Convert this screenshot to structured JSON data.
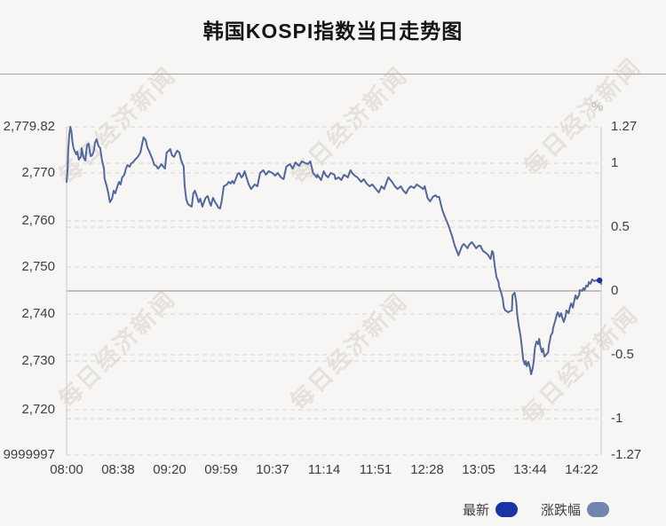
{
  "page": {
    "title": "韩国KOSPI指数当日走势图"
  },
  "watermark": {
    "text": "每日经济新闻"
  },
  "chart_data": {
    "type": "line",
    "title": "韩国KOSPI指数当日走势图",
    "unit_label": "%",
    "grid": "dashed horizontal gridlines for both axes; solid gray line at 0%",
    "legend_position": "bottom-right",
    "left_axis": {
      "labels": [
        "2,779.82",
        "2,770",
        "2,760",
        "2,750",
        "2,740",
        "2,730",
        "2,720",
        "9999997"
      ]
    },
    "right_axis": {
      "labels": [
        "1.27",
        "1",
        "0.5",
        "0",
        "-0.5",
        "-1",
        "-1.27"
      ],
      "ylim": [
        -1.27,
        1.27
      ]
    },
    "x_axis": {
      "labels": [
        "08:00",
        "08:38",
        "09:20",
        "09:59",
        "10:37",
        "11:14",
        "11:51",
        "12:28",
        "13:05",
        "13:44",
        "14:22"
      ]
    },
    "zero_line_pct": 0,
    "legend": [
      {
        "label": "最新",
        "color": "#1a34a6"
      },
      {
        "label": "涨跌幅",
        "color": "#7285ad"
      }
    ],
    "series": [
      {
        "name": "涨跌幅(%)",
        "color": "#52689b",
        "points": [
          [
            0.0,
            0.844
          ],
          [
            0.002,
            0.947
          ],
          [
            0.003,
            1.085
          ],
          [
            0.005,
            1.208
          ],
          [
            0.007,
            1.27
          ],
          [
            0.009,
            1.236
          ],
          [
            0.011,
            1.153
          ],
          [
            0.013,
            1.105
          ],
          [
            0.015,
            1.085
          ],
          [
            0.018,
            1.057
          ],
          [
            0.02,
            1.078
          ],
          [
            0.023,
            1.016
          ],
          [
            0.027,
            1.043
          ],
          [
            0.028,
            1.105
          ],
          [
            0.032,
            1.03
          ],
          [
            0.035,
            1.009
          ],
          [
            0.038,
            1.126
          ],
          [
            0.041,
            1.14
          ],
          [
            0.045,
            1.043
          ],
          [
            0.048,
            1.05
          ],
          [
            0.051,
            1.085
          ],
          [
            0.053,
            1.146
          ],
          [
            0.056,
            1.174
          ],
          [
            0.06,
            1.119
          ],
          [
            0.063,
            1.105
          ],
          [
            0.066,
            1.016
          ],
          [
            0.07,
            0.947
          ],
          [
            0.071,
            0.872
          ],
          [
            0.075,
            0.81
          ],
          [
            0.078,
            0.755
          ],
          [
            0.081,
            0.687
          ],
          [
            0.085,
            0.714
          ],
          [
            0.088,
            0.776
          ],
          [
            0.091,
            0.755
          ],
          [
            0.094,
            0.796
          ],
          [
            0.098,
            0.844
          ],
          [
            0.101,
            0.824
          ],
          [
            0.104,
            0.879
          ],
          [
            0.108,
            0.899
          ],
          [
            0.111,
            0.947
          ],
          [
            0.114,
            0.975
          ],
          [
            0.118,
            0.961
          ],
          [
            0.121,
            0.988
          ],
          [
            0.124,
            0.995
          ],
          [
            0.128,
            1.016
          ],
          [
            0.133,
            1.037
          ],
          [
            0.138,
            1.071
          ],
          [
            0.141,
            1.133
          ],
          [
            0.144,
            1.188
          ],
          [
            0.148,
            1.167
          ],
          [
            0.151,
            1.112
          ],
          [
            0.154,
            1.085
          ],
          [
            0.161,
            1.016
          ],
          [
            0.164,
            0.975
          ],
          [
            0.168,
            0.968
          ],
          [
            0.171,
            0.947
          ],
          [
            0.174,
            0.961
          ],
          [
            0.177,
            0.982
          ],
          [
            0.181,
            0.961
          ],
          [
            0.184,
            0.947
          ],
          [
            0.187,
            1.071
          ],
          [
            0.191,
            1.085
          ],
          [
            0.194,
            1.098
          ],
          [
            0.197,
            1.05
          ],
          [
            0.201,
            1.037
          ],
          [
            0.204,
            1.064
          ],
          [
            0.207,
            1.085
          ],
          [
            0.211,
            1.071
          ],
          [
            0.214,
            1.016
          ],
          [
            0.217,
            0.982
          ],
          [
            0.219,
            0.968
          ],
          [
            0.221,
            0.81
          ],
          [
            0.224,
            0.707
          ],
          [
            0.227,
            0.673
          ],
          [
            0.231,
            0.659
          ],
          [
            0.234,
            0.652
          ],
          [
            0.237,
            0.755
          ],
          [
            0.24,
            0.776
          ],
          [
            0.244,
            0.728
          ],
          [
            0.247,
            0.687
          ],
          [
            0.25,
            0.714
          ],
          [
            0.254,
            0.652
          ],
          [
            0.257,
            0.687
          ],
          [
            0.26,
            0.721
          ],
          [
            0.264,
            0.734
          ],
          [
            0.267,
            0.693
          ],
          [
            0.27,
            0.659
          ],
          [
            0.274,
            0.721
          ],
          [
            0.277,
            0.693
          ],
          [
            0.28,
            0.673
          ],
          [
            0.284,
            0.645
          ],
          [
            0.287,
            0.638
          ],
          [
            0.29,
            0.693
          ],
          [
            0.294,
            0.81
          ],
          [
            0.297,
            0.817
          ],
          [
            0.3,
            0.824
          ],
          [
            0.303,
            0.844
          ],
          [
            0.307,
            0.831
          ],
          [
            0.31,
            0.851
          ],
          [
            0.313,
            0.831
          ],
          [
            0.317,
            0.872
          ],
          [
            0.32,
            0.906
          ],
          [
            0.323,
            0.913
          ],
          [
            0.327,
            0.879
          ],
          [
            0.33,
            0.892
          ],
          [
            0.333,
            0.927
          ],
          [
            0.34,
            0.831
          ],
          [
            0.345,
            0.789
          ],
          [
            0.352,
            0.824
          ],
          [
            0.357,
            0.81
          ],
          [
            0.362,
            0.913
          ],
          [
            0.368,
            0.934
          ],
          [
            0.373,
            0.899
          ],
          [
            0.378,
            0.927
          ],
          [
            0.385,
            0.913
          ],
          [
            0.39,
            0.892
          ],
          [
            0.395,
            0.913
          ],
          [
            0.401,
            0.879
          ],
          [
            0.406,
            0.865
          ],
          [
            0.411,
            0.961
          ],
          [
            0.418,
            0.982
          ],
          [
            0.423,
            0.947
          ],
          [
            0.428,
            0.995
          ],
          [
            0.435,
            0.968
          ],
          [
            0.44,
            1.002
          ],
          [
            0.444,
            0.995
          ],
          [
            0.451,
            0.982
          ],
          [
            0.456,
            1.002
          ],
          [
            0.461,
            0.913
          ],
          [
            0.468,
            0.879
          ],
          [
            0.469,
            0.899
          ],
          [
            0.476,
            0.858
          ],
          [
            0.481,
            0.927
          ],
          [
            0.484,
            0.899
          ],
          [
            0.489,
            0.879
          ],
          [
            0.494,
            0.913
          ],
          [
            0.501,
            0.899
          ],
          [
            0.503,
            0.865
          ],
          [
            0.509,
            0.879
          ],
          [
            0.514,
            0.858
          ],
          [
            0.519,
            0.899
          ],
          [
            0.526,
            0.879
          ],
          [
            0.531,
            0.934
          ],
          [
            0.534,
            0.913
          ],
          [
            0.539,
            0.892
          ],
          [
            0.544,
            0.879
          ],
          [
            0.551,
            0.844
          ],
          [
            0.556,
            0.865
          ],
          [
            0.561,
            0.831
          ],
          [
            0.567,
            0.81
          ],
          [
            0.572,
            0.824
          ],
          [
            0.577,
            0.796
          ],
          [
            0.584,
            0.762
          ],
          [
            0.589,
            0.81
          ],
          [
            0.594,
            0.789
          ],
          [
            0.6,
            0.858
          ],
          [
            0.602,
            0.879
          ],
          [
            0.609,
            0.844
          ],
          [
            0.614,
            0.81
          ],
          [
            0.619,
            0.789
          ],
          [
            0.625,
            0.81
          ],
          [
            0.63,
            0.776
          ],
          [
            0.635,
            0.755
          ],
          [
            0.639,
            0.789
          ],
          [
            0.644,
            0.81
          ],
          [
            0.65,
            0.796
          ],
          [
            0.655,
            0.824
          ],
          [
            0.66,
            0.81
          ],
          [
            0.667,
            0.789
          ],
          [
            0.67,
            0.81
          ],
          [
            0.675,
            0.721
          ],
          [
            0.68,
            0.693
          ],
          [
            0.685,
            0.728
          ],
          [
            0.69,
            0.741
          ],
          [
            0.693,
            0.728
          ],
          [
            0.697,
            0.728
          ],
          [
            0.7,
            0.673
          ],
          [
            0.703,
            0.625
          ],
          [
            0.708,
            0.57
          ],
          [
            0.713,
            0.522
          ],
          [
            0.716,
            0.487
          ],
          [
            0.721,
            0.426
          ],
          [
            0.726,
            0.35
          ],
          [
            0.73,
            0.309
          ],
          [
            0.733,
            0.275
          ],
          [
            0.736,
            0.309
          ],
          [
            0.74,
            0.35
          ],
          [
            0.743,
            0.364
          ],
          [
            0.746,
            0.35
          ],
          [
            0.75,
            0.33
          ],
          [
            0.753,
            0.357
          ],
          [
            0.758,
            0.378
          ],
          [
            0.763,
            0.35
          ],
          [
            0.766,
            0.33
          ],
          [
            0.771,
            0.35
          ],
          [
            0.774,
            0.35
          ],
          [
            0.779,
            0.309
          ],
          [
            0.784,
            0.295
          ],
          [
            0.788,
            0.281
          ],
          [
            0.791,
            0.261
          ],
          [
            0.793,
            0.247
          ],
          [
            0.796,
            0.309
          ],
          [
            0.798,
            0.295
          ],
          [
            0.801,
            0.192
          ],
          [
            0.804,
            0.11
          ],
          [
            0.808,
            0.069
          ],
          [
            0.809,
            0.034
          ],
          [
            0.813,
            -0.014
          ],
          [
            0.816,
            -0.062
          ],
          [
            0.818,
            -0.13
          ],
          [
            0.821,
            -0.151
          ],
          [
            0.826,
            -0.165
          ],
          [
            0.829,
            -0.158
          ],
          [
            0.833,
            -0.151
          ],
          [
            0.834,
            -0.034
          ],
          [
            0.838,
            -0.014
          ],
          [
            0.841,
            -0.082
          ],
          [
            0.843,
            -0.185
          ],
          [
            0.846,
            -0.275
          ],
          [
            0.849,
            -0.343
          ],
          [
            0.851,
            -0.412
          ],
          [
            0.854,
            -0.529
          ],
          [
            0.857,
            -0.57
          ],
          [
            0.859,
            -0.542
          ],
          [
            0.861,
            -0.583
          ],
          [
            0.864,
            -0.549
          ],
          [
            0.867,
            -0.597
          ],
          [
            0.869,
            -0.645
          ],
          [
            0.872,
            -0.597
          ],
          [
            0.874,
            -0.542
          ],
          [
            0.876,
            -0.439
          ],
          [
            0.879,
            -0.391
          ],
          [
            0.882,
            -0.412
          ],
          [
            0.884,
            -0.371
          ],
          [
            0.886,
            -0.426
          ],
          [
            0.889,
            -0.474
          ],
          [
            0.891,
            -0.446
          ],
          [
            0.894,
            -0.508
          ],
          [
            0.897,
            -0.494
          ],
          [
            0.901,
            -0.474
          ],
          [
            0.902,
            -0.426
          ],
          [
            0.906,
            -0.343
          ],
          [
            0.909,
            -0.323
          ],
          [
            0.91,
            -0.288
          ],
          [
            0.914,
            -0.233
          ],
          [
            0.917,
            -0.185
          ],
          [
            0.919,
            -0.165
          ],
          [
            0.922,
            -0.199
          ],
          [
            0.925,
            -0.172
          ],
          [
            0.927,
            -0.206
          ],
          [
            0.93,
            -0.24
          ],
          [
            0.934,
            -0.185
          ],
          [
            0.935,
            -0.151
          ],
          [
            0.939,
            -0.172
          ],
          [
            0.942,
            -0.117
          ],
          [
            0.944,
            -0.096
          ],
          [
            0.947,
            -0.13
          ],
          [
            0.95,
            -0.069
          ],
          [
            0.952,
            -0.034
          ],
          [
            0.955,
            -0.062
          ],
          [
            0.959,
            -0.027
          ],
          [
            0.96,
            0.007
          ],
          [
            0.964,
            0.0
          ],
          [
            0.967,
            0.021
          ],
          [
            0.969,
            0.007
          ],
          [
            0.972,
            0.041
          ],
          [
            0.975,
            0.034
          ],
          [
            0.977,
            0.069
          ],
          [
            0.98,
            0.055
          ],
          [
            0.983,
            0.089
          ],
          [
            0.987,
            0.076
          ],
          [
            0.99,
            0.082
          ],
          [
            0.993,
            0.082
          ],
          [
            0.997,
            0.082
          ],
          [
            1.0,
            0.055
          ]
        ]
      }
    ]
  },
  "colors": {
    "background": "#f8f6f4",
    "line": "#52689b",
    "latest_marker": "#1a34a6",
    "change_marker": "#7285ad",
    "grid": "#d8d5d2",
    "zero_line": "#b3b0ae",
    "axis": "#c9c9cc",
    "label": "#3e3e3e"
  }
}
